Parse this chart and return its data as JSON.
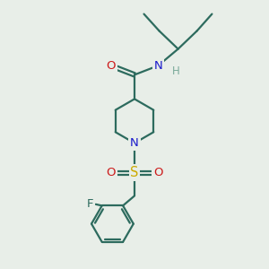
{
  "bg_color": "#e8eee8",
  "bond_color": "#2d6b5e",
  "N_color": "#1a1acc",
  "O_color": "#cc1a1a",
  "S_color": "#ccaa00",
  "F_color": "#2d6b5e",
  "H_color": "#7aaa9a",
  "figsize": [
    3.0,
    3.0
  ],
  "dpi": 100,
  "xlim": [
    0,
    10
  ],
  "ylim": [
    0,
    10
  ]
}
